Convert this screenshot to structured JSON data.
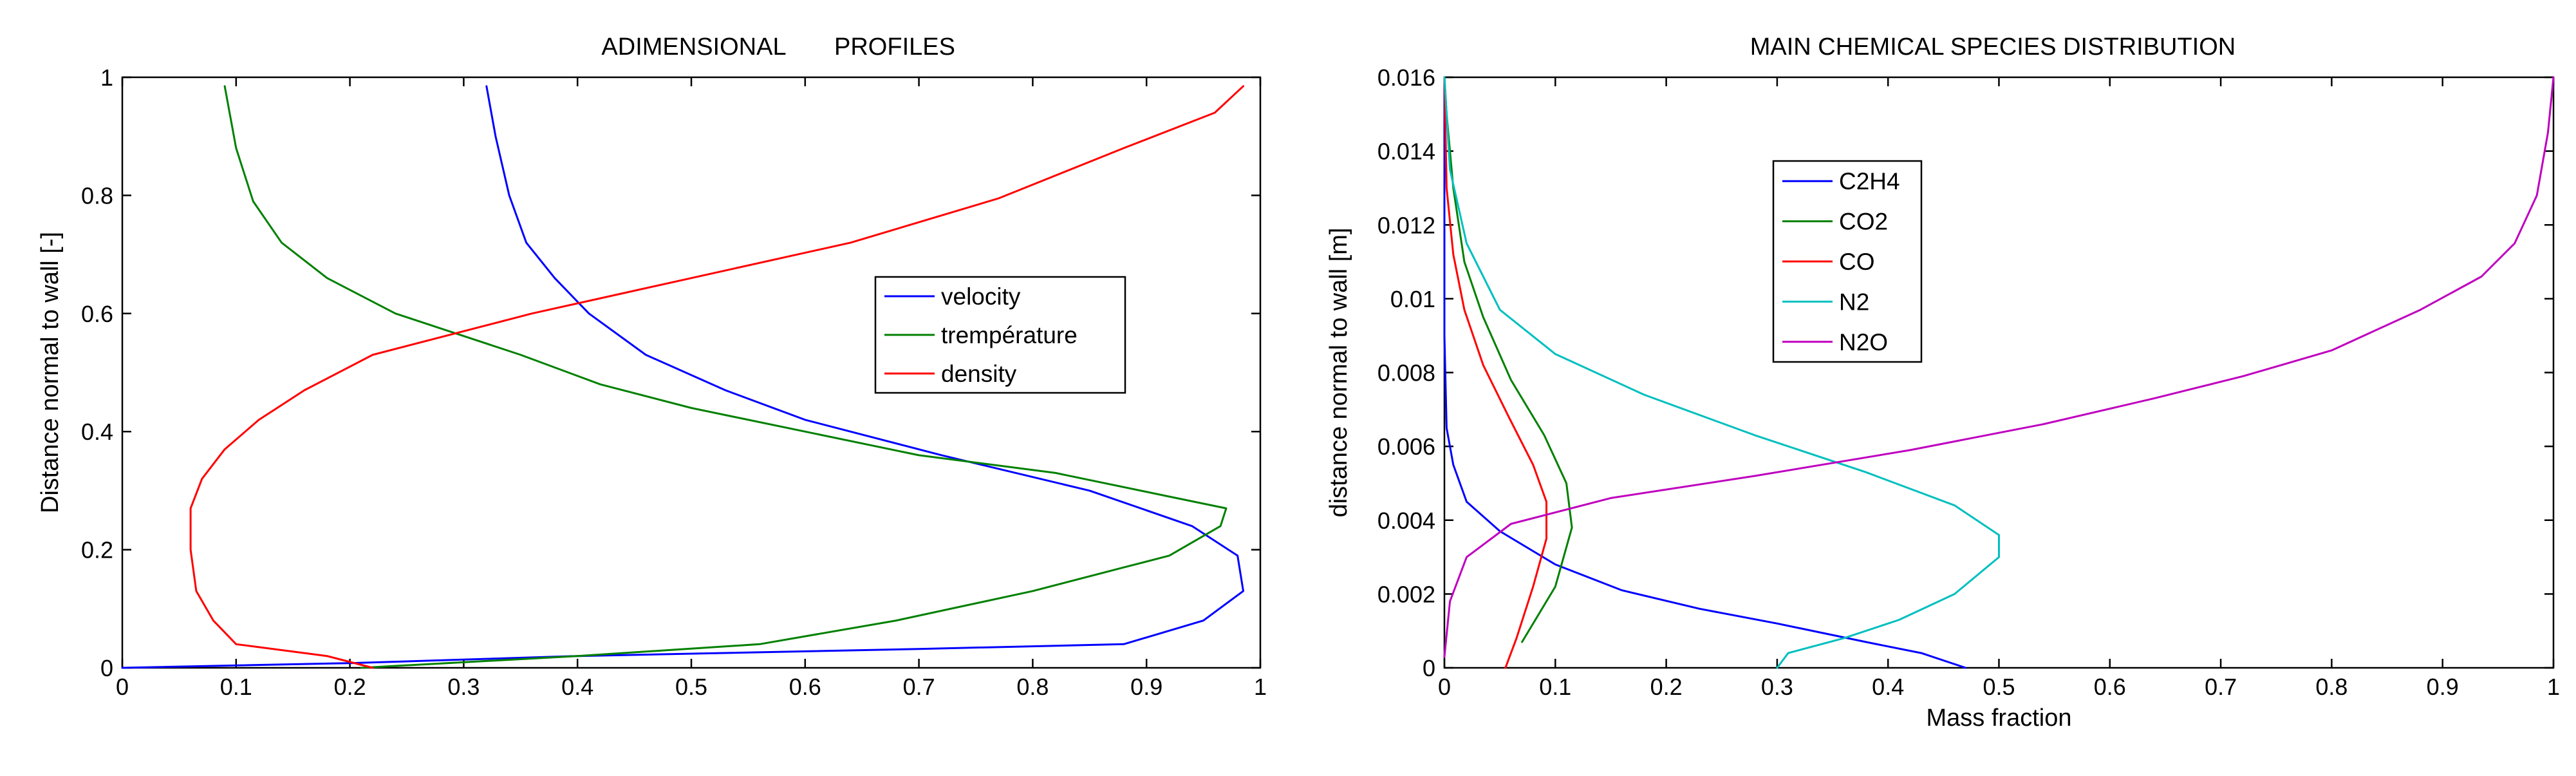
{
  "chart_data": [
    {
      "type": "line",
      "title_parts": [
        "ADIMENSIONAL",
        "PROFILES"
      ],
      "xlabel": "",
      "ylabel": "Distance normal to wall [-]",
      "xlim": [
        0,
        1
      ],
      "ylim": [
        0,
        1
      ],
      "x_ticks": [
        0,
        0.1,
        0.2,
        0.3,
        0.4,
        0.5,
        0.6,
        0.7,
        0.8,
        0.9,
        1
      ],
      "x_tick_labels": [
        "0",
        "0.1",
        "0.2",
        "0.3",
        "0.4",
        "0.5",
        "0.6",
        "0.7",
        "0.8",
        "0.9",
        "1"
      ],
      "y_ticks": [
        0,
        0.2,
        0.4,
        0.6,
        0.8,
        1
      ],
      "y_tick_labels": [
        "0",
        "0.2",
        "0.4",
        "0.6",
        "0.8",
        "1"
      ],
      "grid": false,
      "legend_position": "center-right",
      "series": [
        {
          "name": "velocity",
          "color": "#0000ff",
          "points": [
            [
              0.0,
              0.0
            ],
            [
              0.2,
              0.008
            ],
            [
              0.4,
              0.02
            ],
            [
              0.7,
              0.032
            ],
            [
              0.88,
              0.04
            ],
            [
              0.95,
              0.08
            ],
            [
              0.985,
              0.13
            ],
            [
              0.98,
              0.19
            ],
            [
              0.94,
              0.24
            ],
            [
              0.85,
              0.3
            ],
            [
              0.72,
              0.36
            ],
            [
              0.6,
              0.42
            ],
            [
              0.53,
              0.47
            ],
            [
              0.46,
              0.53
            ],
            [
              0.41,
              0.6
            ],
            [
              0.38,
              0.66
            ],
            [
              0.355,
              0.72
            ],
            [
              0.34,
              0.8
            ],
            [
              0.328,
              0.9
            ],
            [
              0.32,
              0.985
            ]
          ]
        },
        {
          "name": "trempérature",
          "color": "#008000",
          "points": [
            [
              0.21,
              0.0
            ],
            [
              0.4,
              0.02
            ],
            [
              0.56,
              0.04
            ],
            [
              0.68,
              0.08
            ],
            [
              0.8,
              0.13
            ],
            [
              0.88,
              0.17
            ],
            [
              0.92,
              0.19
            ],
            [
              0.965,
              0.24
            ],
            [
              0.97,
              0.27
            ],
            [
              0.92,
              0.29
            ],
            [
              0.82,
              0.33
            ],
            [
              0.7,
              0.36
            ],
            [
              0.6,
              0.4
            ],
            [
              0.5,
              0.44
            ],
            [
              0.42,
              0.48
            ],
            [
              0.35,
              0.53
            ],
            [
              0.24,
              0.6
            ],
            [
              0.18,
              0.66
            ],
            [
              0.14,
              0.72
            ],
            [
              0.115,
              0.79
            ],
            [
              0.1,
              0.88
            ],
            [
              0.09,
              0.985
            ]
          ]
        },
        {
          "name": "density",
          "color": "#ff0000",
          "points": [
            [
              0.22,
              0.0
            ],
            [
              0.18,
              0.02
            ],
            [
              0.1,
              0.04
            ],
            [
              0.08,
              0.08
            ],
            [
              0.065,
              0.13
            ],
            [
              0.06,
              0.2
            ],
            [
              0.06,
              0.27
            ],
            [
              0.07,
              0.32
            ],
            [
              0.09,
              0.37
            ],
            [
              0.12,
              0.42
            ],
            [
              0.16,
              0.47
            ],
            [
              0.22,
              0.53
            ],
            [
              0.36,
              0.6
            ],
            [
              0.5,
              0.66
            ],
            [
              0.64,
              0.72
            ],
            [
              0.77,
              0.795
            ],
            [
              0.88,
              0.88
            ],
            [
              0.96,
              0.94
            ],
            [
              0.985,
              0.985
            ]
          ]
        }
      ]
    },
    {
      "type": "line",
      "title": "MAIN CHEMICAL SPECIES DISTRIBUTION",
      "xlabel": "Mass fraction",
      "ylabel": "distance normal to wall [m]",
      "xlim": [
        0,
        1
      ],
      "ylim": [
        0,
        0.016
      ],
      "x_ticks": [
        0,
        0.1,
        0.2,
        0.3,
        0.4,
        0.5,
        0.6,
        0.7,
        0.8,
        0.9,
        1
      ],
      "x_tick_labels": [
        "0",
        "0.1",
        "0.2",
        "0.3",
        "0.4",
        "0.5",
        "0.6",
        "0.7",
        "0.8",
        "0.9",
        "1"
      ],
      "y_ticks": [
        0,
        0.002,
        0.004,
        0.006,
        0.008,
        0.01,
        0.012,
        0.014,
        0.016
      ],
      "y_tick_labels": [
        "0",
        "0.002",
        "0.004",
        "0.006",
        "0.008",
        "0.01",
        "0.012",
        "0.014",
        "0.016"
      ],
      "grid": false,
      "legend_position": "top-left",
      "series": [
        {
          "name": "C2H4",
          "color": "#0000ff",
          "points": [
            [
              0.47,
              0.0
            ],
            [
              0.43,
              0.0004
            ],
            [
              0.38,
              0.0007
            ],
            [
              0.3,
              0.0012
            ],
            [
              0.23,
              0.0016
            ],
            [
              0.16,
              0.0021
            ],
            [
              0.1,
              0.0028
            ],
            [
              0.05,
              0.0037
            ],
            [
              0.02,
              0.0045
            ],
            [
              0.008,
              0.0055
            ],
            [
              0.002,
              0.0065
            ],
            [
              0.0,
              0.009
            ],
            [
              0.0,
              0.016
            ]
          ]
        },
        {
          "name": "CO2",
          "color": "#008000",
          "points": [
            [
              0.07,
              0.0007
            ],
            [
              0.1,
              0.0022
            ],
            [
              0.115,
              0.0038
            ],
            [
              0.11,
              0.005
            ],
            [
              0.09,
              0.0063
            ],
            [
              0.06,
              0.0078
            ],
            [
              0.035,
              0.0095
            ],
            [
              0.018,
              0.011
            ],
            [
              0.008,
              0.013
            ],
            [
              0.002,
              0.015
            ],
            [
              0.0,
              0.016
            ]
          ]
        },
        {
          "name": "CO",
          "color": "#ff0000",
          "points": [
            [
              0.055,
              0.0
            ],
            [
              0.065,
              0.0008
            ],
            [
              0.08,
              0.0022
            ],
            [
              0.092,
              0.0035
            ],
            [
              0.092,
              0.0045
            ],
            [
              0.08,
              0.0055
            ],
            [
              0.058,
              0.0068
            ],
            [
              0.035,
              0.0082
            ],
            [
              0.018,
              0.0097
            ],
            [
              0.008,
              0.0112
            ],
            [
              0.002,
              0.013
            ],
            [
              0.0,
              0.016
            ]
          ]
        },
        {
          "name": "N2",
          "color": "#00bfbf",
          "points": [
            [
              0.3,
              0.0
            ],
            [
              0.31,
              0.0004
            ],
            [
              0.36,
              0.0008
            ],
            [
              0.41,
              0.0013
            ],
            [
              0.46,
              0.002
            ],
            [
              0.5,
              0.003
            ],
            [
              0.5,
              0.0036
            ],
            [
              0.46,
              0.0044
            ],
            [
              0.38,
              0.0053
            ],
            [
              0.28,
              0.0063
            ],
            [
              0.18,
              0.0074
            ],
            [
              0.1,
              0.0085
            ],
            [
              0.05,
              0.0097
            ],
            [
              0.02,
              0.0115
            ],
            [
              0.005,
              0.0135
            ],
            [
              0.0,
              0.016
            ]
          ]
        },
        {
          "name": "N2O",
          "color": "#bf00bf",
          "points": [
            [
              0.0,
              0.0003
            ],
            [
              0.005,
              0.0018
            ],
            [
              0.02,
              0.003
            ],
            [
              0.06,
              0.0039
            ],
            [
              0.15,
              0.0046
            ],
            [
              0.28,
              0.0052
            ],
            [
              0.42,
              0.0059
            ],
            [
              0.54,
              0.0066
            ],
            [
              0.64,
              0.0073
            ],
            [
              0.72,
              0.0079
            ],
            [
              0.8,
              0.0086
            ],
            [
              0.88,
              0.0097
            ],
            [
              0.935,
              0.0106
            ],
            [
              0.965,
              0.0115
            ],
            [
              0.985,
              0.0128
            ],
            [
              0.995,
              0.0145
            ],
            [
              1.0,
              0.016
            ]
          ]
        }
      ]
    }
  ]
}
